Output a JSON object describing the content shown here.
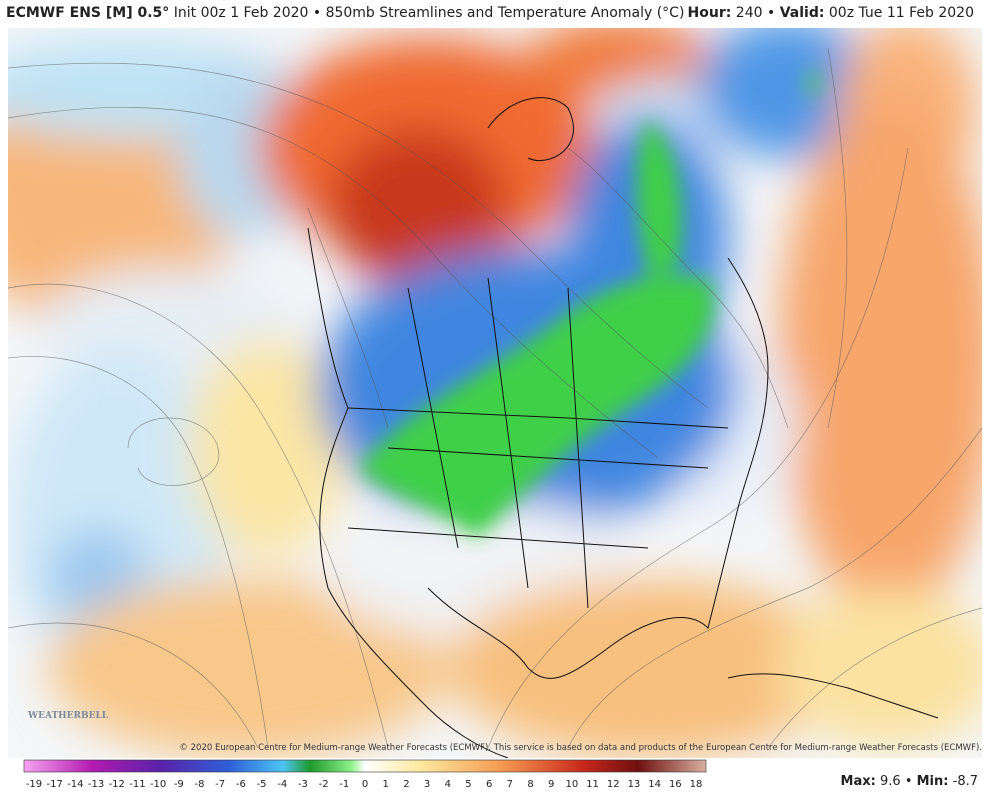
{
  "header": {
    "model": "ECMWF ENS [M] 0.5°",
    "title": "Init 00z 1 Feb 2020 • 850mb Streamlines and Temperature Anomaly (°C)",
    "hour_label": "Hour:",
    "hour": "240",
    "separator": "•",
    "valid_label": "Valid:",
    "valid": "00z Tue 11 Feb 2020"
  },
  "map": {
    "copyright": "© 2020 European Centre for Medium-range Weather Forecasts (ECMWF). This service is based on data and products of the European Centre for Medium-range Weather Forecasts (ECMWF).",
    "logo": "WEATHERBELL"
  },
  "colorbar": {
    "labels": [
      "-19",
      "-17",
      "-14",
      "-13",
      "-12",
      "-11",
      "-10",
      "-9",
      "-8",
      "-7",
      "-6",
      "-5",
      "-4",
      "-3",
      "-2",
      "-1",
      "0",
      "1",
      "2",
      "3",
      "4",
      "5",
      "6",
      "7",
      "8",
      "9",
      "10",
      "11",
      "12",
      "13",
      "14",
      "16",
      "18"
    ]
  },
  "stats": {
    "max_label": "Max:",
    "max": "9.6",
    "separator": "•",
    "min_label": "Min:",
    "min": "-8.7"
  }
}
